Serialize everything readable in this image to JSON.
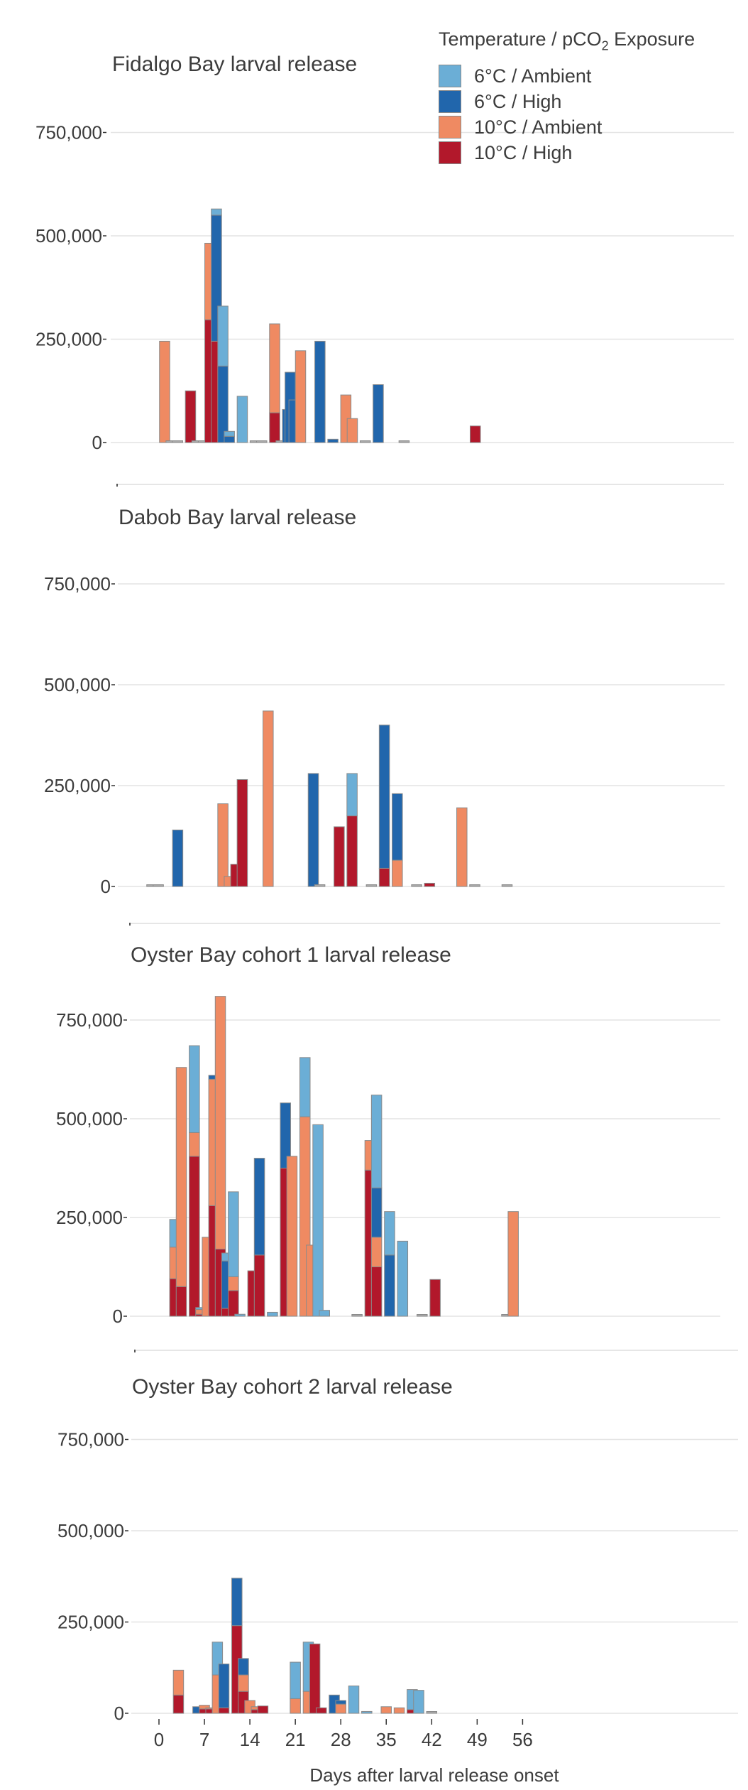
{
  "figure": {
    "legend_title_prefix": "Temperature / pCO",
    "legend_title_sub": "2",
    "legend_title_suffix": " Exposure",
    "xlabel": "Days after larval release onset",
    "x_ticks": [
      "0",
      "7",
      "14",
      "21",
      "28",
      "35",
      "42",
      "49",
      "56"
    ]
  },
  "legend": [
    {
      "label": "6°C / Ambient",
      "color": "#6baed6"
    },
    {
      "label": "6°C / High",
      "color": "#2166ac"
    },
    {
      "label": "10°C / Ambient",
      "color": "#ef8a62"
    },
    {
      "label": "10°C / High",
      "color": "#b2182b"
    }
  ],
  "chart_data": [
    {
      "type": "bar",
      "stacked": true,
      "title": "Fidalgo Bay larval release",
      "xlabel": "",
      "ylabel": "",
      "ylim": [
        -100000,
        820000
      ],
      "yticks": [
        0,
        250000,
        500000,
        750000
      ],
      "ytick_labels": [
        "0",
        "250,000",
        "500,000",
        "750,000"
      ],
      "grid": true,
      "legend": "top-right",
      "bars": [
        {
          "day": 4,
          "values": [
            0,
            0,
            245000,
            0
          ]
        },
        {
          "day": 5,
          "values": [
            3000,
            0,
            0,
            0
          ]
        },
        {
          "day": 6,
          "values": [
            3000,
            0,
            0,
            0
          ]
        },
        {
          "day": 8,
          "values": [
            0,
            0,
            0,
            125000
          ]
        },
        {
          "day": 9,
          "values": [
            3000,
            0,
            0,
            0
          ]
        },
        {
          "day": 10,
          "values": [
            3000,
            0,
            0,
            0
          ]
        },
        {
          "day": 11,
          "values": [
            0,
            0,
            185000,
            297000
          ]
        },
        {
          "day": 12,
          "values": [
            15000,
            305000,
            0,
            245000
          ]
        },
        {
          "day": 13,
          "values": [
            145000,
            185000,
            0,
            0
          ]
        },
        {
          "day": 14,
          "values": [
            12000,
            15000,
            0,
            0
          ]
        },
        {
          "day": 16,
          "values": [
            112000,
            0,
            0,
            0
          ]
        },
        {
          "day": 18,
          "values": [
            3000,
            0,
            0,
            0
          ]
        },
        {
          "day": 19,
          "values": [
            3000,
            0,
            0,
            0
          ]
        },
        {
          "day": 21,
          "values": [
            0,
            0,
            215000,
            72000
          ]
        },
        {
          "day": 22,
          "values": [
            0,
            0,
            3000,
            0
          ]
        },
        {
          "day": 23,
          "values": [
            0,
            80000,
            0,
            0
          ]
        },
        {
          "day": 23.4,
          "values": [
            0,
            170000,
            0,
            0
          ]
        },
        {
          "day": 24,
          "values": [
            0,
            103000,
            0,
            0
          ]
        },
        {
          "day": 25,
          "values": [
            0,
            0,
            222000,
            0
          ]
        },
        {
          "day": 28,
          "values": [
            0,
            245000,
            0,
            0
          ]
        },
        {
          "day": 30,
          "values": [
            0,
            8000,
            0,
            0
          ]
        },
        {
          "day": 32,
          "values": [
            0,
            0,
            115000,
            0
          ]
        },
        {
          "day": 33,
          "values": [
            0,
            0,
            58000,
            0
          ]
        },
        {
          "day": 35,
          "values": [
            3000,
            0,
            0,
            0
          ]
        },
        {
          "day": 37,
          "values": [
            0,
            140000,
            0,
            0
          ]
        },
        {
          "day": 41,
          "values": [
            3000,
            0,
            0,
            0
          ]
        },
        {
          "day": 52,
          "values": [
            0,
            0,
            0,
            40000
          ]
        }
      ]
    },
    {
      "type": "bar",
      "stacked": true,
      "title": "Dabob Bay larval release",
      "xlabel": "",
      "ylabel": "",
      "ylim": [
        -90000,
        830000
      ],
      "yticks": [
        0,
        250000,
        500000,
        750000
      ],
      "ytick_labels": [
        "0",
        "250,000",
        "500,000",
        "750,000"
      ],
      "grid": true,
      "bars": [
        {
          "day": 0,
          "values": [
            3000,
            0,
            0,
            0
          ]
        },
        {
          "day": 1,
          "values": [
            3000,
            0,
            0,
            0
          ]
        },
        {
          "day": 4,
          "values": [
            0,
            140000,
            0,
            0
          ]
        },
        {
          "day": 11,
          "values": [
            0,
            0,
            205000,
            0
          ]
        },
        {
          "day": 12,
          "values": [
            0,
            0,
            25000,
            0
          ]
        },
        {
          "day": 13,
          "values": [
            0,
            0,
            0,
            55000
          ]
        },
        {
          "day": 14,
          "values": [
            0,
            0,
            0,
            265000
          ]
        },
        {
          "day": 18,
          "values": [
            0,
            0,
            435000,
            0
          ]
        },
        {
          "day": 25,
          "values": [
            0,
            280000,
            0,
            0
          ]
        },
        {
          "day": 26,
          "values": [
            3000,
            0,
            0,
            0
          ]
        },
        {
          "day": 29,
          "values": [
            0,
            0,
            0,
            148000
          ]
        },
        {
          "day": 31,
          "values": [
            105000,
            0,
            0,
            175000
          ]
        },
        {
          "day": 34,
          "values": [
            3000,
            0,
            0,
            0
          ]
        },
        {
          "day": 36,
          "values": [
            0,
            355000,
            0,
            45000
          ]
        },
        {
          "day": 38,
          "values": [
            0,
            165000,
            65000,
            0
          ]
        },
        {
          "day": 41,
          "values": [
            3000,
            0,
            0,
            0
          ]
        },
        {
          "day": 43,
          "values": [
            0,
            0,
            0,
            8000
          ]
        },
        {
          "day": 48,
          "values": [
            0,
            0,
            195000,
            0
          ]
        },
        {
          "day": 50,
          "values": [
            3000,
            0,
            0,
            0
          ]
        },
        {
          "day": 55,
          "values": [
            3000,
            0,
            0,
            0
          ]
        }
      ]
    },
    {
      "type": "bar",
      "stacked": true,
      "title": "Oyster Bay cohort 1 larval release",
      "xlabel": "",
      "ylabel": "",
      "ylim": [
        -90000,
        840000
      ],
      "yticks": [
        0,
        250000,
        500000,
        750000
      ],
      "ytick_labels": [
        "0",
        "250,000",
        "500,000",
        "750,000"
      ],
      "grid": true,
      "bars": [
        {
          "day": 2,
          "values": [
            70000,
            0,
            80000,
            95000
          ]
        },
        {
          "day": 3,
          "values": [
            0,
            0,
            555000,
            75000
          ]
        },
        {
          "day": 5,
          "values": [
            220000,
            0,
            60000,
            405000
          ]
        },
        {
          "day": 6,
          "values": [
            5000,
            0,
            12000,
            5000
          ]
        },
        {
          "day": 7,
          "values": [
            0,
            0,
            200000,
            0
          ]
        },
        {
          "day": 8,
          "values": [
            0,
            10000,
            320000,
            280000
          ]
        },
        {
          "day": 9,
          "values": [
            0,
            0,
            640000,
            170000
          ]
        },
        {
          "day": 10,
          "values": [
            20000,
            120000,
            0,
            20000
          ]
        },
        {
          "day": 11,
          "values": [
            215000,
            0,
            35000,
            65000
          ]
        },
        {
          "day": 12,
          "values": [
            5000,
            0,
            0,
            0
          ]
        },
        {
          "day": 14,
          "values": [
            0,
            0,
            0,
            115000
          ]
        },
        {
          "day": 15,
          "values": [
            0,
            245000,
            0,
            155000
          ]
        },
        {
          "day": 17,
          "values": [
            10000,
            0,
            0,
            0
          ]
        },
        {
          "day": 19,
          "values": [
            0,
            165000,
            0,
            375000
          ]
        },
        {
          "day": 20,
          "values": [
            0,
            0,
            405000,
            0
          ]
        },
        {
          "day": 22,
          "values": [
            150000,
            0,
            505000,
            0
          ]
        },
        {
          "day": 23,
          "values": [
            0,
            0,
            180000,
            0
          ]
        },
        {
          "day": 24,
          "values": [
            485000,
            0,
            0,
            0
          ]
        },
        {
          "day": 25,
          "values": [
            15000,
            0,
            0,
            0
          ]
        },
        {
          "day": 30,
          "values": [
            3000,
            0,
            0,
            0
          ]
        },
        {
          "day": 32,
          "values": [
            0,
            0,
            75000,
            370000
          ]
        },
        {
          "day": 33,
          "values": [
            235000,
            125000,
            75000,
            125000
          ]
        },
        {
          "day": 35,
          "values": [
            110000,
            155000,
            0,
            0
          ]
        },
        {
          "day": 37,
          "values": [
            190000,
            0,
            0,
            0
          ]
        },
        {
          "day": 40,
          "values": [
            3000,
            0,
            0,
            0
          ]
        },
        {
          "day": 42,
          "values": [
            0,
            0,
            0,
            93000
          ]
        },
        {
          "day": 53,
          "values": [
            3000,
            0,
            0,
            0
          ]
        },
        {
          "day": 54,
          "values": [
            0,
            0,
            265000,
            0
          ]
        }
      ]
    },
    {
      "type": "bar",
      "stacked": true,
      "title": "Oyster Bay cohort 2 larval release",
      "xlabel": "Days after larval release onset",
      "ylabel": "",
      "ylim": [
        -10000,
        850000
      ],
      "yticks": [
        0,
        250000,
        500000,
        750000
      ],
      "ytick_labels": [
        "0",
        "250,000",
        "500,000",
        "750,000"
      ],
      "xticks": [
        0,
        7,
        14,
        21,
        28,
        35,
        42,
        49,
        56
      ],
      "grid": true,
      "bars": [
        {
          "day": 3,
          "values": [
            0,
            0,
            68000,
            50000
          ]
        },
        {
          "day": 6,
          "values": [
            0,
            18000,
            0,
            0
          ]
        },
        {
          "day": 7,
          "values": [
            0,
            0,
            10000,
            12000
          ]
        },
        {
          "day": 8,
          "values": [
            0,
            0,
            3000,
            12000
          ]
        },
        {
          "day": 9,
          "values": [
            90000,
            0,
            105000,
            0
          ]
        },
        {
          "day": 10,
          "values": [
            0,
            120000,
            0,
            15000
          ]
        },
        {
          "day": 12,
          "values": [
            0,
            130000,
            0,
            240000
          ]
        },
        {
          "day": 13,
          "values": [
            0,
            45000,
            45000,
            60000
          ]
        },
        {
          "day": 14,
          "values": [
            0,
            0,
            35000,
            0
          ]
        },
        {
          "day": 15,
          "values": [
            0,
            0,
            8000,
            10000
          ]
        },
        {
          "day": 16,
          "values": [
            0,
            0,
            0,
            20000
          ]
        },
        {
          "day": 21,
          "values": [
            100000,
            0,
            40000,
            0
          ]
        },
        {
          "day": 23,
          "values": [
            135000,
            0,
            60000,
            0
          ]
        },
        {
          "day": 24,
          "values": [
            0,
            0,
            0,
            190000
          ]
        },
        {
          "day": 25,
          "values": [
            0,
            0,
            0,
            15000
          ]
        },
        {
          "day": 27,
          "values": [
            0,
            50000,
            0,
            0
          ]
        },
        {
          "day": 28,
          "values": [
            0,
            10000,
            25000,
            0
          ]
        },
        {
          "day": 30,
          "values": [
            75000,
            0,
            0,
            0
          ]
        },
        {
          "day": 32,
          "values": [
            5000,
            0,
            0,
            0
          ]
        },
        {
          "day": 35,
          "values": [
            0,
            0,
            18000,
            0
          ]
        },
        {
          "day": 37,
          "values": [
            0,
            0,
            15000,
            0
          ]
        },
        {
          "day": 39,
          "values": [
            55000,
            0,
            0,
            10000
          ]
        },
        {
          "day": 40,
          "values": [
            63000,
            0,
            0,
            0
          ]
        },
        {
          "day": 42,
          "values": [
            3000,
            0,
            0,
            0
          ]
        }
      ]
    }
  ]
}
